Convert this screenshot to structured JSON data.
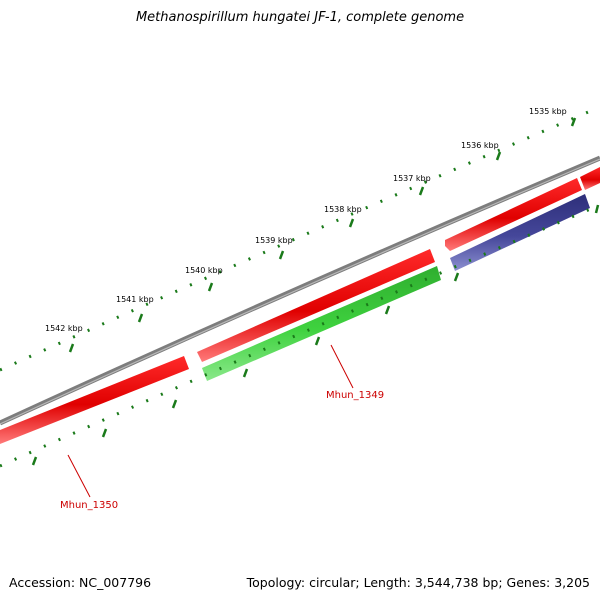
{
  "title": "Methanospirillum hungatei JF-1, complete genome",
  "footer": {
    "accession": "Accession: NC_007796",
    "summary": "Topology: circular; Length: 3,544,738 bp; Genes: 3,205"
  },
  "ruler": {
    "ticks": [
      "1535 kbp",
      "1536 kbp",
      "1537 kbp",
      "1538 kbp",
      "1539 kbp",
      "1540 kbp",
      "1541 kbp",
      "1542 kbp"
    ]
  },
  "genes": {
    "mhun_1349": "Mhun_1349",
    "mhun_1350": "Mhun_1350"
  },
  "colors": {
    "backbone": "#7d7d7d",
    "forward_cds": "#ff0000",
    "reverse_cds": "#33cc33",
    "other_feature": "#3c3f8f",
    "ruler_marks": "#1a7a1a",
    "gene_label": "#cc0000"
  }
}
